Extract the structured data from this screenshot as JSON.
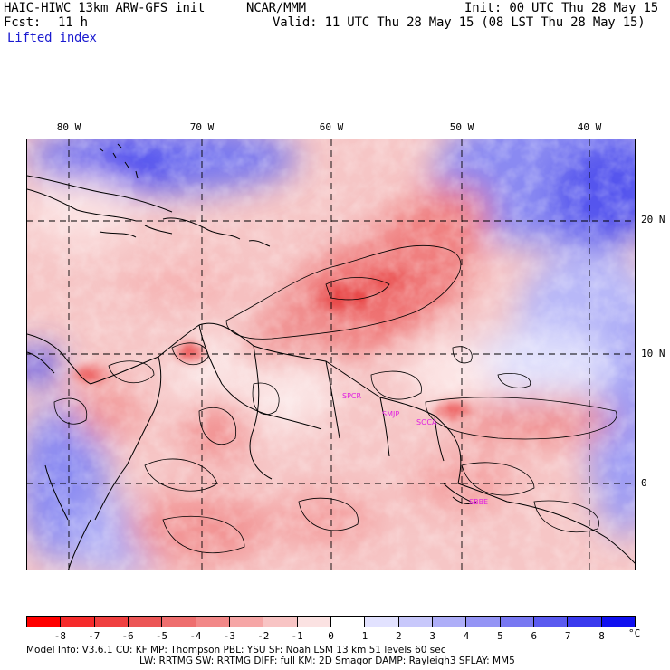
{
  "header": {
    "model_line": "HAIC-HIWC 13km ARW-GFS init",
    "org": "NCAR/MMM",
    "init": "Init: 00 UTC Thu 28 May 15",
    "fcst_label": "Fcst:",
    "fcst_value": "11 h",
    "valid": "Valid: 11 UTC Thu 28 May 15 (08 LST Thu 28 May 15)",
    "field": "Lifted index"
  },
  "map": {
    "lon_labels": [
      "80 W",
      "70 W",
      "60 W",
      "50 W",
      "40 W"
    ],
    "lat_labels": [
      "20 N",
      "10 N",
      "0"
    ],
    "stations": [
      "SPCR",
      "SMJP",
      "SOCA",
      "SBBE"
    ],
    "colors": {
      "land_border": "#000000",
      "contour": "#000000",
      "station": "#e020e0"
    }
  },
  "colorbar": {
    "labels": [
      "-8",
      "-7",
      "-6",
      "-5",
      "-4",
      "-3",
      "-2",
      "-1",
      "0",
      "1",
      "2",
      "3",
      "4",
      "5",
      "6",
      "7",
      "8"
    ],
    "unit": "°C",
    "colors": [
      "#ff0000",
      "#f62b2b",
      "#f04040",
      "#ec5656",
      "#ee6e6e",
      "#f28888",
      "#f6a6a6",
      "#f8c4c4",
      "#fbe2e2",
      "#ffffff",
      "#e2e2ff",
      "#c8c8fb",
      "#aeaef8",
      "#9494f5",
      "#7878f2",
      "#5a5af0",
      "#3a3aee",
      "#1010f0"
    ]
  },
  "footer": {
    "line1": "Model Info: V3.6.1     CU: KF       MP: Thompson     PBL: YSU       SF: Noah LSM      13 km    51 levels   60 sec",
    "line2": "LW: RRTMG    SW: RRTMG   DIFF: full    KM: 2D Smagor  DAMP: Rayleigh3   SFLAY: MM5"
  }
}
